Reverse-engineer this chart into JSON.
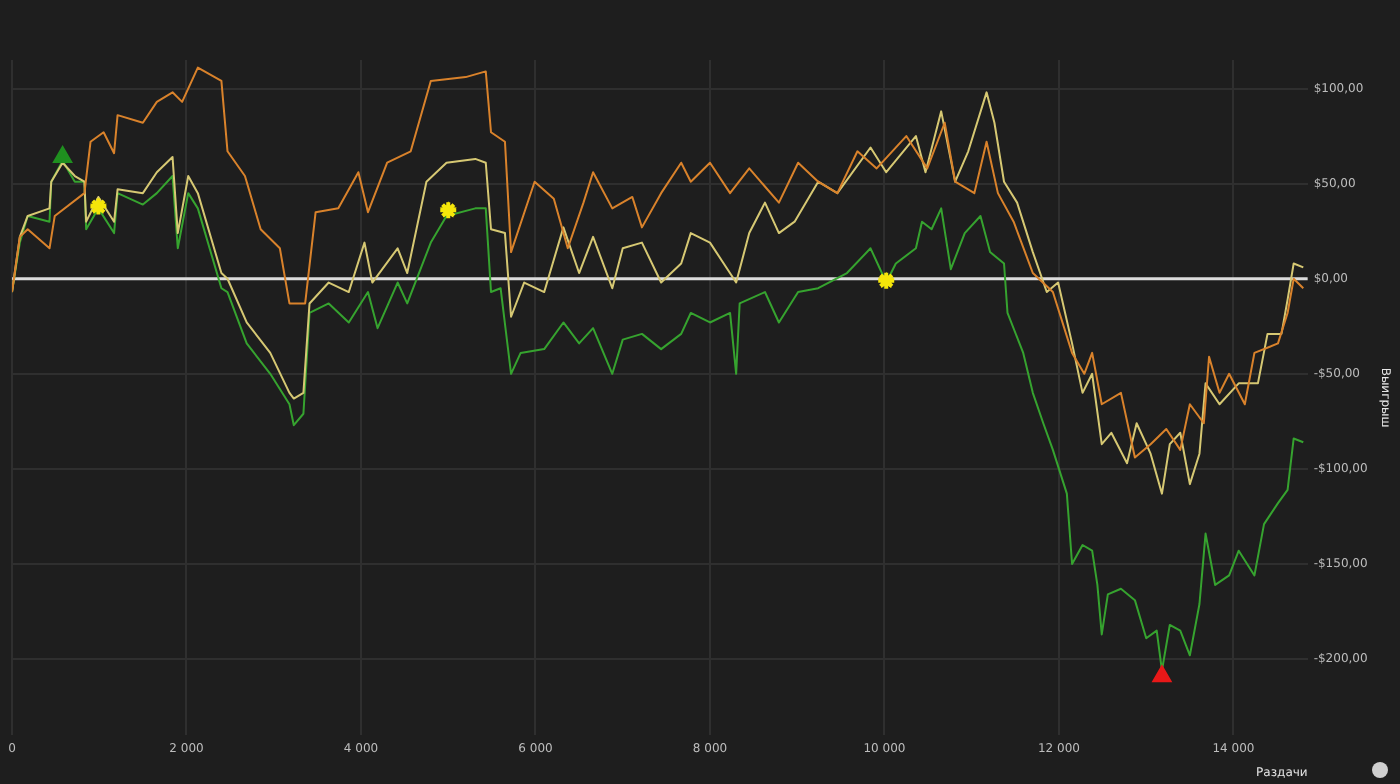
{
  "chart_data": {
    "type": "line",
    "xlabel": "Раздачи",
    "ylabel": "Выигрыш",
    "xlim": [
      0,
      14850
    ],
    "ylim": [
      -240,
      115
    ],
    "xticks": [
      0,
      {
        "value": 2000,
        "label": "2 000"
      },
      {
        "value": 4000,
        "label": "4 000"
      },
      {
        "value": 6000,
        "label": "6 000"
      },
      {
        "value": 8000,
        "label": "8 000"
      },
      {
        "value": 10000,
        "label": "10 000"
      },
      {
        "value": 12000,
        "label": "12 000"
      },
      {
        "value": 14000,
        "label": "14 000"
      }
    ],
    "yticks": [
      {
        "value": -200,
        "label": "-$200,00"
      },
      {
        "value": -150,
        "label": "-$150,00"
      },
      {
        "value": -100,
        "label": "-$100,00"
      },
      {
        "value": -50,
        "label": "-$50,00"
      },
      {
        "value": 0,
        "label": "$0,00"
      },
      {
        "value": 50,
        "label": "$50,00"
      },
      {
        "value": 100,
        "label": "$100,00"
      }
    ],
    "grid": true,
    "legend": false,
    "marker": "none",
    "line_style": "solid",
    "ref_lines": [
      {
        "axis": "y",
        "value": 0,
        "color": "#dcdcdc"
      }
    ],
    "series": [
      {
        "color": "#d9822b",
        "x": [
          0,
          90,
          180,
          430,
          490,
          830,
          900,
          1050,
          1170,
          1210,
          1500,
          1660,
          1840,
          1950,
          2130,
          2400,
          2470,
          2670,
          2850,
          3070,
          3180,
          3360,
          3480,
          3740,
          3970,
          4080,
          4300,
          4570,
          4800,
          5200,
          5430,
          5490,
          5650,
          5720,
          5990,
          6210,
          6370,
          6550,
          6660,
          6880,
          7110,
          7220,
          7440,
          7670,
          7780,
          8000,
          8230,
          8450,
          8790,
          9010,
          9240,
          9460,
          9690,
          9910,
          10250,
          10490,
          10690,
          10810,
          11030,
          11170,
          11300,
          11480,
          11700,
          11930,
          12150,
          12290,
          12380,
          12490,
          12710,
          12870,
          13050,
          13230,
          13390,
          13500,
          13660,
          13720,
          13840,
          13950,
          14130,
          14240,
          14510,
          14620,
          14690,
          14800
        ],
        "values": [
          -7,
          22,
          26,
          16,
          33,
          45,
          72,
          77,
          66,
          86,
          82,
          93,
          98,
          93,
          111,
          104,
          67,
          54,
          26,
          16,
          -13,
          -13,
          35,
          37,
          56,
          35,
          61,
          67,
          104,
          106,
          109,
          77,
          72,
          14,
          51,
          42,
          16,
          40,
          56,
          37,
          43,
          27,
          45,
          61,
          51,
          61,
          45,
          58,
          40,
          61,
          51,
          45,
          67,
          58,
          75,
          58,
          82,
          51,
          45,
          72,
          45,
          30,
          3,
          -7,
          -39,
          -50,
          -39,
          -66,
          -60,
          -94,
          -87,
          -79,
          -90,
          -66,
          -76,
          -41,
          -60,
          -50,
          -66,
          -39,
          -34,
          -18,
          0,
          -5
        ]
      },
      {
        "color": "#d6c873",
        "x": [
          0,
          90,
          180,
          430,
          450,
          580,
          720,
          830,
          850,
          990,
          1170,
          1210,
          1500,
          1660,
          1840,
          1900,
          2020,
          2130,
          2400,
          2470,
          2690,
          2960,
          3180,
          3230,
          3340,
          3410,
          3630,
          3860,
          4040,
          4130,
          4420,
          4530,
          4750,
          4980,
          5310,
          5430,
          5490,
          5650,
          5720,
          5870,
          6100,
          6320,
          6500,
          6660,
          6880,
          7000,
          7220,
          7440,
          7670,
          7780,
          8000,
          8300,
          8450,
          8630,
          8790,
          8970,
          9240,
          9460,
          9840,
          10020,
          10360,
          10470,
          10650,
          10810,
          10960,
          11170,
          11260,
          11370,
          11520,
          11700,
          11860,
          11990,
          12150,
          12270,
          12380,
          12490,
          12600,
          12780,
          12890,
          13050,
          13180,
          13270,
          13390,
          13500,
          13610,
          13680,
          13840,
          14060,
          14280,
          14390,
          14550,
          14620,
          14690,
          14800
        ],
        "values": [
          -7,
          22,
          33,
          37,
          51,
          61,
          54,
          51,
          30,
          43,
          30,
          47,
          45,
          56,
          64,
          24,
          54,
          45,
          3,
          0,
          -23,
          -39,
          -60,
          -63,
          -60,
          -13,
          -2,
          -7,
          19,
          -2,
          16,
          3,
          51,
          61,
          63,
          61,
          26,
          24,
          -20,
          -2,
          -7,
          27,
          3,
          22,
          -5,
          16,
          19,
          -2,
          8,
          24,
          19,
          -2,
          24,
          40,
          24,
          30,
          51,
          45,
          69,
          56,
          75,
          56,
          88,
          51,
          67,
          98,
          82,
          51,
          40,
          14,
          -7,
          -2,
          -34,
          -60,
          -50,
          -87,
          -81,
          -97,
          -76,
          -92,
          -113,
          -87,
          -81,
          -108,
          -92,
          -55,
          -66,
          -55,
          -55,
          -29,
          -29,
          -11,
          8,
          6
        ]
      },
      {
        "color": "#36a32f",
        "x": [
          0,
          90,
          180,
          430,
          450,
          580,
          720,
          830,
          850,
          990,
          1170,
          1210,
          1500,
          1660,
          1840,
          1900,
          2020,
          2130,
          2400,
          2470,
          2690,
          2960,
          3180,
          3230,
          3340,
          3410,
          3630,
          3860,
          4080,
          4190,
          4420,
          4530,
          4800,
          4980,
          5310,
          5430,
          5490,
          5600,
          5720,
          5830,
          6100,
          6320,
          6500,
          6660,
          6880,
          7000,
          7220,
          7440,
          7670,
          7780,
          8000,
          8230,
          8300,
          8340,
          8630,
          8790,
          9010,
          9240,
          9570,
          9840,
          10020,
          10130,
          10360,
          10430,
          10540,
          10650,
          10760,
          10920,
          11100,
          11210,
          11370,
          11410,
          11590,
          11700,
          11820,
          11930,
          12090,
          12150,
          12270,
          12380,
          12440,
          12490,
          12560,
          12710,
          12870,
          13000,
          13120,
          13180,
          13270,
          13390,
          13500,
          13610,
          13680,
          13790,
          13950,
          14060,
          14240,
          14350,
          14510,
          14620,
          14690,
          14800
        ],
        "values": [
          -7,
          19,
          33,
          30,
          51,
          62,
          51,
          51,
          26,
          37,
          24,
          45,
          39,
          45,
          54,
          16,
          45,
          37,
          -5,
          -7,
          -34,
          -50,
          -66,
          -77,
          -71,
          -18,
          -13,
          -23,
          -7,
          -26,
          -2,
          -13,
          19,
          33,
          37,
          37,
          -7,
          -5,
          -50,
          -39,
          -37,
          -23,
          -34,
          -26,
          -50,
          -32,
          -29,
          -37,
          -29,
          -18,
          -23,
          -18,
          -50,
          -13,
          -7,
          -23,
          -7,
          -5,
          3,
          16,
          -2,
          8,
          16,
          30,
          26,
          37,
          5,
          24,
          33,
          14,
          8,
          -18,
          -39,
          -60,
          -76,
          -90,
          -113,
          -150,
          -140,
          -143,
          -161,
          -187,
          -166,
          -163,
          -169,
          -189,
          -185,
          -206,
          -182,
          -185,
          -198,
          -171,
          -134,
          -161,
          -156,
          -143,
          -156,
          -129,
          -118,
          -111,
          -84,
          -86
        ]
      },
      {
        "type": "scatter",
        "marker": "star",
        "color": "#f5e60a",
        "x": [
          990,
          5000,
          10020
        ],
        "values": [
          38,
          36,
          -1
        ]
      },
      {
        "type": "scatter",
        "marker": "triangle",
        "color": "#1f8f1f",
        "x": [
          580
        ],
        "values": [
          64
        ]
      },
      {
        "type": "scatter",
        "marker": "triangle",
        "color": "#e81818",
        "x": [
          13180
        ],
        "values": [
          -209
        ]
      }
    ]
  }
}
